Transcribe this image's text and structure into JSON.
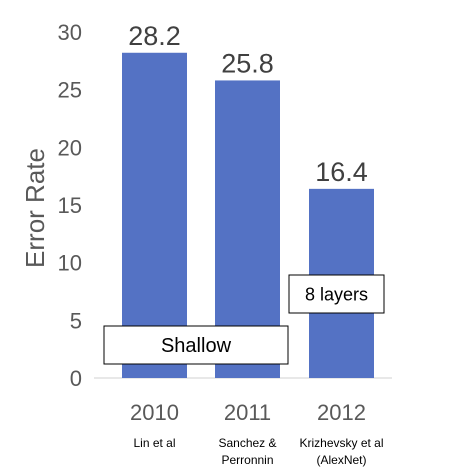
{
  "chart_data": {
    "type": "bar",
    "categories": [
      "2010",
      "2011",
      "2012"
    ],
    "category_sublabels": [
      [
        "Lin et al"
      ],
      [
        "Sanchez &",
        "Perronnin"
      ],
      [
        "Krizhevsky et al",
        "(AlexNet)"
      ]
    ],
    "values": [
      28.2,
      25.8,
      16.4
    ],
    "data_labels": [
      "28.2",
      "25.8",
      "16.4"
    ],
    "ylabel": "Error Rate",
    "ylim": [
      0,
      30
    ],
    "yticks": [
      "0",
      "5",
      "10",
      "15",
      "20",
      "25",
      "30"
    ],
    "grid": false,
    "bar_color": "#5472c4",
    "annotations": [
      {
        "text": "Shallow",
        "spans": [
          "2010",
          "2011"
        ]
      },
      {
        "text": "8 layers",
        "spans": [
          "2012"
        ]
      }
    ]
  }
}
